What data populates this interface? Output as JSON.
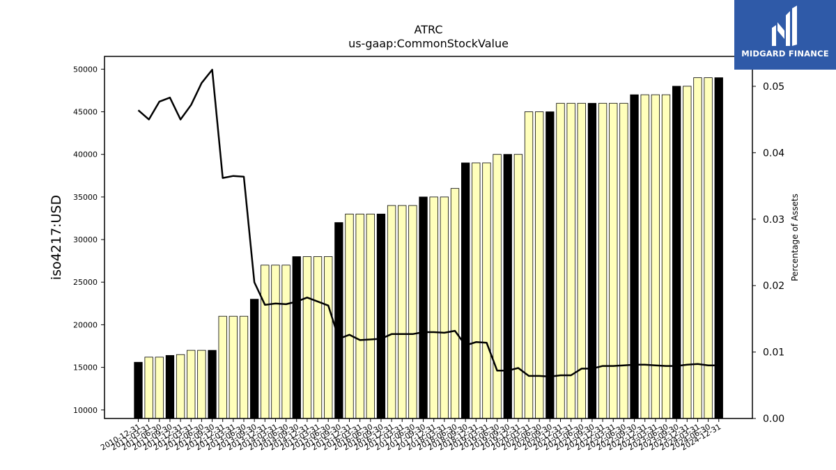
{
  "chart_data": {
    "type": "bar",
    "title": "ATRC",
    "subtitle": "us-gaap:CommonStockValue",
    "ylabel": "iso4217:USD",
    "y2label": "Percentage of Assets",
    "ylim": [
      9000,
      51500
    ],
    "y2lim": [
      0,
      0.0545
    ],
    "yticks": [
      10000,
      15000,
      20000,
      25000,
      30000,
      35000,
      40000,
      45000,
      50000
    ],
    "y2ticks": [
      "0.00",
      "0.01",
      "0.02",
      "0.03",
      "0.04",
      "0.05"
    ],
    "colors": {
      "annual": "#000000",
      "quarterly": "#ffffbb",
      "line": "#000000"
    },
    "categories": [
      "2010-12-31",
      "2011-03-31",
      "2011-06-30",
      "2011-09-30",
      "2011-12-31",
      "2012-03-31",
      "2012-06-30",
      "2012-09-30",
      "2012-12-31",
      "2013-03-31",
      "2013-06-30",
      "2013-09-30",
      "2013-12-31",
      "2014-03-31",
      "2014-06-30",
      "2014-09-30",
      "2014-12-31",
      "2015-03-31",
      "2015-06-30",
      "2015-09-30",
      "2015-12-31",
      "2016-03-31",
      "2016-06-30",
      "2016-09-30",
      "2016-12-31",
      "2017-03-31",
      "2017-06-30",
      "2017-09-30",
      "2017-12-31",
      "2018-03-31",
      "2018-06-30",
      "2018-09-30",
      "2018-12-31",
      "2019-03-31",
      "2019-06-30",
      "2019-09-30",
      "2019-12-31",
      "2020-03-31",
      "2020-06-30",
      "2020-09-30",
      "2020-12-31",
      "2021-03-31",
      "2021-06-30",
      "2021-09-30",
      "2021-12-31",
      "2022-03-31",
      "2022-06-30",
      "2022-09-30",
      "2022-12-31",
      "2023-03-31",
      "2023-06-30",
      "2023-09-30",
      "2023-12-31",
      "2024-03-31",
      "2024-06-30",
      "2024-12-31"
    ],
    "annual": [
      true,
      false,
      false,
      true,
      false,
      false,
      false,
      true,
      false,
      false,
      false,
      true,
      false,
      false,
      false,
      true,
      false,
      false,
      false,
      true,
      false,
      false,
      false,
      true,
      false,
      false,
      false,
      true,
      false,
      false,
      false,
      true,
      false,
      false,
      false,
      true,
      false,
      false,
      false,
      true,
      false,
      false,
      false,
      true,
      false,
      false,
      false,
      true,
      false,
      false,
      false,
      true,
      false,
      false,
      false,
      true
    ],
    "values": [
      15600,
      16200,
      16200,
      16400,
      16500,
      17000,
      17000,
      17000,
      21000,
      21000,
      21000,
      23000,
      27000,
      27000,
      27000,
      28000,
      28000,
      28000,
      28000,
      32000,
      33000,
      33000,
      33000,
      33000,
      34000,
      34000,
      34000,
      35000,
      35000,
      35000,
      36000,
      39000,
      39000,
      39000,
      40000,
      40000,
      40000,
      45000,
      45000,
      45000,
      46000,
      46000,
      46000,
      46000,
      46000,
      46000,
      46000,
      47000,
      47000,
      47000,
      47000,
      48000,
      48000,
      49000,
      49000,
      49000
    ],
    "pct": [
      0.0464,
      0.045,
      0.0477,
      0.0483,
      0.045,
      0.0472,
      0.0505,
      0.0525,
      0.0362,
      0.0365,
      0.0364,
      0.0205,
      0.0171,
      0.0173,
      0.0172,
      0.0176,
      0.0182,
      0.0176,
      0.017,
      0.012,
      0.0126,
      0.0118,
      0.0119,
      0.012,
      0.0127,
      0.0127,
      0.0127,
      0.013,
      0.013,
      0.0129,
      0.0132,
      0.011,
      0.0115,
      0.0114,
      0.0072,
      0.0072,
      0.0076,
      0.0064,
      0.0064,
      0.0063,
      0.0065,
      0.0065,
      0.0075,
      0.0075,
      0.0079,
      0.0079,
      0.008,
      0.0081,
      0.0081,
      0.008,
      0.0079,
      0.0079,
      0.0081,
      0.0082,
      0.008,
      0.008
    ]
  },
  "logo": {
    "name": "MIDGARD FINANCE",
    "icon": "midgard-logo-mark"
  }
}
